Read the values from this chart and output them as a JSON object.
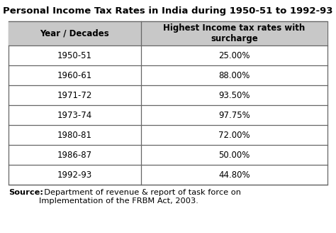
{
  "title": "Personal Income Tax Rates in India during 1950-51 to 1992-93",
  "col1_header": "Year / Decades",
  "col2_header": "Highest Income tax rates with\nsurcharge",
  "rows": [
    [
      "1950-51",
      "25.00%"
    ],
    [
      "1960-61",
      "88.00%"
    ],
    [
      "1971-72",
      "93.50%"
    ],
    [
      "1973-74",
      "97.75%"
    ],
    [
      "1980-81",
      "72.00%"
    ],
    [
      "1986-87",
      "50.00%"
    ],
    [
      "1992-93",
      "44.80%"
    ]
  ],
  "source_bold": "Source:",
  "source_rest": "  Department of revenue & report of task force on\nImplementation of the FRBM Act, 2003.",
  "bg_color": "#ffffff",
  "header_bg": "#c8c8c8",
  "border_color": "#666666",
  "text_color": "#000000",
  "title_fontsize": 9.5,
  "header_fontsize": 8.5,
  "cell_fontsize": 8.5,
  "source_fontsize": 8.2,
  "fig_width": 4.74,
  "fig_height": 3.28,
  "dpi": 100
}
